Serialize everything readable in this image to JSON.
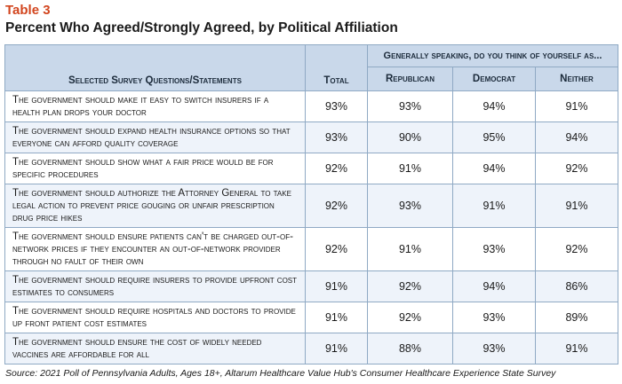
{
  "table_label": "Table 3",
  "title": "Percent Who Agreed/Strongly Agreed, by Political Affiliation",
  "headers": {
    "question": "Selected Survey Questions/Statements",
    "total": "Total",
    "group": "Generally speaking, do you think of yourself as...",
    "republican": "Republican",
    "democrat": "Democrat",
    "neither": "Neither"
  },
  "rows": [
    {
      "q": "The government should make it easy to switch insurers if a health plan drops your doctor",
      "total": "93%",
      "rep": "93%",
      "dem": "94%",
      "nei": "91%"
    },
    {
      "q": "The government should expand health insurance options so that everyone can afford quality coverage",
      "total": "93%",
      "rep": "90%",
      "dem": "95%",
      "nei": "94%"
    },
    {
      "q": "The government should show what a fair price would be for specific procedures",
      "total": "92%",
      "rep": "91%",
      "dem": "94%",
      "nei": "92%"
    },
    {
      "q": "The government should authorize the Attorney General to take legal action to prevent price gouging or unfair prescription drug price hikes",
      "total": "92%",
      "rep": "93%",
      "dem": "91%",
      "nei": "91%"
    },
    {
      "q": "The government should ensure patients can't be charged out-of-network prices if they encounter an out-of-network provider through no fault of their own",
      "total": "92%",
      "rep": "91%",
      "dem": "93%",
      "nei": "92%"
    },
    {
      "q": "The government should require insurers to provide upfront cost estimates to consumers",
      "total": "91%",
      "rep": "92%",
      "dem": "94%",
      "nei": "86%"
    },
    {
      "q": "The government should require hospitals and doctors to provide up front patient cost estimates",
      "total": "91%",
      "rep": "92%",
      "dem": "93%",
      "nei": "89%"
    },
    {
      "q": "The government should ensure the cost of widely needed vaccines are affordable for all",
      "total": "91%",
      "rep": "88%",
      "dem": "93%",
      "nei": "91%"
    }
  ],
  "source": "Source: 2021 Poll of Pennsylvania Adults, Ages 18+, Altarum Healthcare Value Hub's Consumer Healthcare Experience State Survey"
}
